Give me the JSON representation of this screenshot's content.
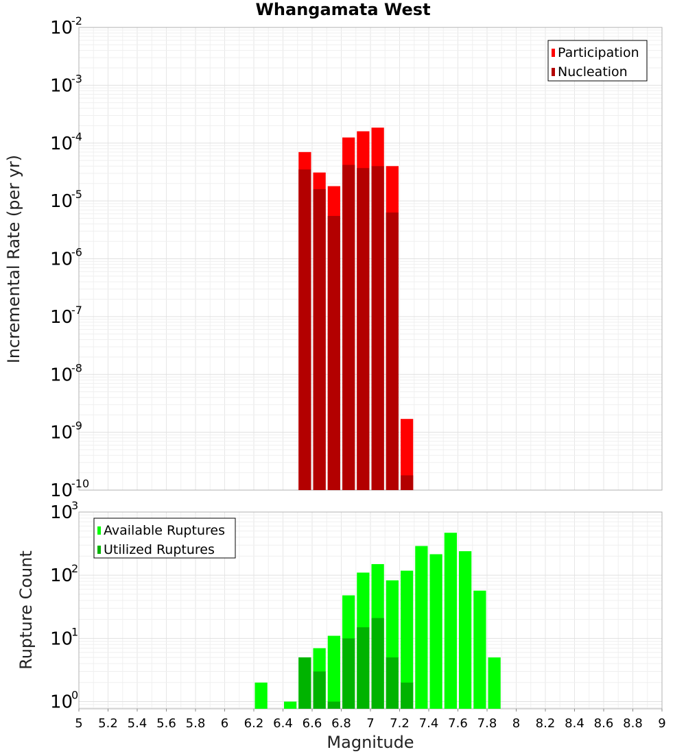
{
  "chart_data": [
    {
      "type": "bar",
      "title": "Whangamata West",
      "xlabel": "",
      "ylabel": "Incremental Rate (per yr)",
      "yscale": "log",
      "ylim": [
        1e-10,
        0.01
      ],
      "xlim": [
        5,
        9
      ],
      "bin_width": 0.1,
      "grid": true,
      "legend_position": "top-right",
      "y_tick_exponents": [
        "-2",
        "-3",
        "-4",
        "-5",
        "-6",
        "-7",
        "-8",
        "-9",
        "-10"
      ],
      "y_tick_base": "10",
      "x": [
        6.55,
        6.65,
        6.75,
        6.85,
        6.95,
        7.05,
        7.15,
        7.25
      ],
      "series": [
        {
          "name": "Participation",
          "color": "#ff0000",
          "values": [
            7e-05,
            3.1e-05,
            1.8e-05,
            0.000125,
            0.00016,
            0.000185,
            4e-05,
            1.7e-09
          ]
        },
        {
          "name": "Nucleation",
          "color": "#b30000",
          "values": [
            3.5e-05,
            1.6e-05,
            5.5e-06,
            4.2e-05,
            3.7e-05,
            4e-05,
            6.3e-06,
            1.8e-10
          ]
        }
      ]
    },
    {
      "type": "bar",
      "xlabel": "Magnitude",
      "ylabel": "Rupture Count",
      "yscale": "log",
      "ylim": [
        0.77,
        1000
      ],
      "xlim": [
        5,
        9
      ],
      "bin_width": 0.1,
      "grid": true,
      "legend_position": "top-left",
      "y_tick_exponents": [
        "3",
        "2",
        "1",
        "0"
      ],
      "y_tick_base": "10",
      "x_ticks": [
        "5",
        "5.2",
        "5.4",
        "5.6",
        "5.8",
        "6",
        "6.2",
        "6.4",
        "6.6",
        "6.8",
        "7",
        "7.2",
        "7.4",
        "7.6",
        "7.8",
        "8",
        "8.2",
        "8.4",
        "8.6",
        "8.8",
        "9"
      ],
      "series": [
        {
          "name": "Available Ruptures",
          "color": "#00ff00",
          "x": [
            6.25,
            6.45,
            6.55,
            6.65,
            6.75,
            6.85,
            6.95,
            7.05,
            7.15,
            7.25,
            7.35,
            7.45,
            7.55,
            7.65,
            7.75,
            7.85
          ],
          "values": [
            2,
            1,
            5,
            7,
            11,
            48,
            110,
            150,
            83,
            118,
            290,
            215,
            470,
            240,
            57,
            5
          ]
        },
        {
          "name": "Utilized Ruptures",
          "color": "#00b300",
          "x": [
            6.55,
            6.65,
            6.75,
            6.85,
            6.95,
            7.05,
            7.15,
            7.25
          ],
          "values": [
            5,
            3,
            1,
            10,
            15,
            21,
            5,
            2
          ]
        }
      ]
    }
  ]
}
